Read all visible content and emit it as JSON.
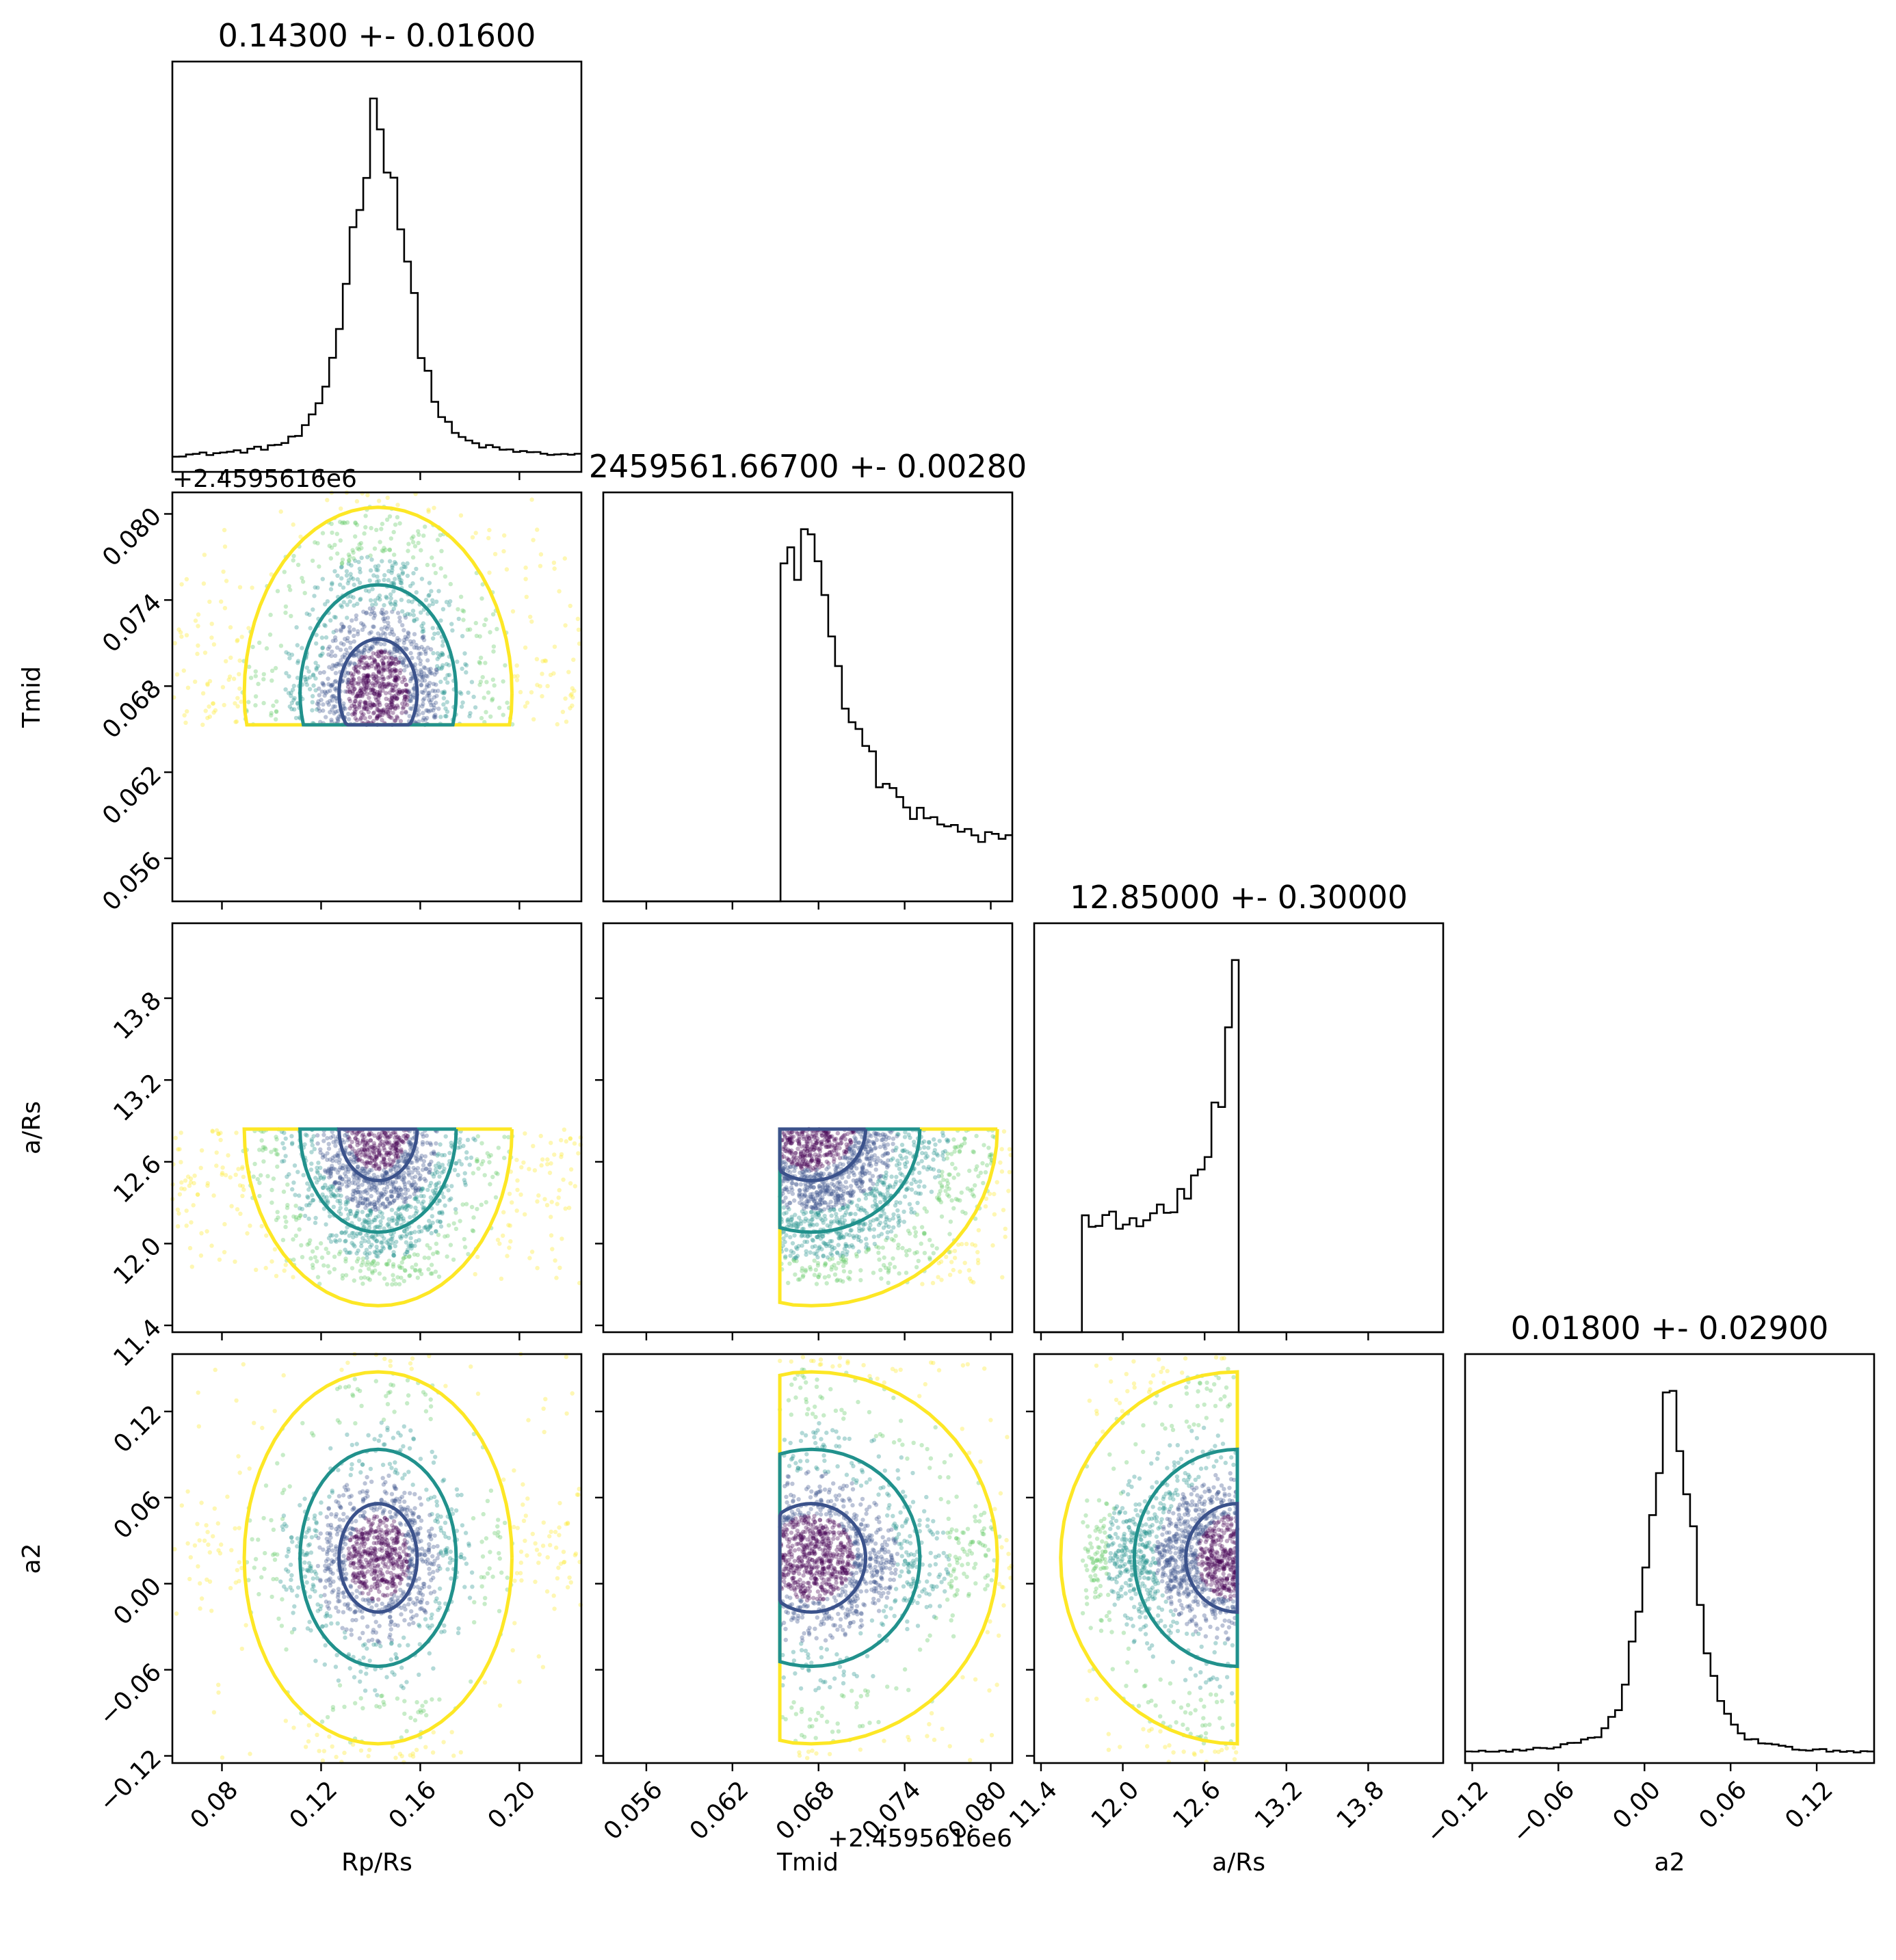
{
  "chart_data": {
    "type": "scatter",
    "subtype": "corner-plot",
    "params": [
      {
        "id": "rp",
        "title": "0.14300 +- 0.01600",
        "label": "Rp/Rs",
        "range": [
          0.06,
          0.225
        ],
        "ticks": [
          0.08,
          0.12,
          0.16,
          0.2
        ],
        "tick_labels": [
          "0.08",
          "0.12",
          "0.16",
          "0.20"
        ]
      },
      {
        "id": "tmid",
        "title": "2459561.66700 +- 0.00280",
        "label": "Tmid",
        "range": [
          0.053,
          0.0815
        ],
        "ticks": [
          0.056,
          0.062,
          0.068,
          0.074,
          0.08
        ],
        "tick_labels": [
          "0.056",
          "0.062",
          "0.068",
          "0.074",
          "0.080"
        ],
        "offset_label": "+2.4595616e6"
      },
      {
        "id": "ars",
        "title": "12.85000 +- 0.30000",
        "label": "a/Rs",
        "range": [
          11.35,
          14.35
        ],
        "ticks": [
          11.4,
          12.0,
          12.6,
          13.2,
          13.8
        ],
        "tick_labels": [
          "11.4",
          "12.0",
          "12.6",
          "13.2",
          "13.8"
        ]
      },
      {
        "id": "a2",
        "title": "0.01800 +- 0.02900",
        "label": "a2",
        "range": [
          -0.125,
          0.16
        ],
        "ticks": [
          -0.12,
          -0.06,
          0.0,
          0.06,
          0.12
        ],
        "tick_labels": [
          "−0.12",
          "−0.06",
          "0.00",
          "0.06",
          "0.12"
        ]
      }
    ],
    "marginals": {
      "rp": {
        "dist": "peak-over-flat",
        "center": 0.143,
        "sigma": 0.011,
        "floor": 0.06,
        "lo": 0.06,
        "hi": 0.225
      },
      "tmid": {
        "dist": "truncated-skewed",
        "cut": 0.0653,
        "peak": 0.0675,
        "lo": 0.053,
        "hi": 0.0815
      },
      "ars": {
        "dist": "rising-truncated",
        "start": 11.7,
        "cut": 12.84,
        "lo": 11.35,
        "hi": 14.35
      },
      "a2": {
        "dist": "peak-over-flat",
        "center": 0.018,
        "sigma": 0.016,
        "floor": 0.04,
        "lo": -0.125,
        "hi": 0.16
      }
    },
    "contour_colors": [
      "#fde725",
      "#21918c",
      "#3b528b"
    ],
    "point_colors": [
      "#440154",
      "#3b528b",
      "#21918c",
      "#5ec962",
      "#fde725"
    ],
    "x_labels": [
      "Rp/Rs",
      "Tmid",
      "a/Rs",
      "a2"
    ],
    "y_labels": [
      "",
      "Tmid",
      "a/Rs",
      "a2"
    ],
    "offset_texts": {
      "x_tmid": "+2.4595616e6",
      "y_tmid": "+2.4595616e6"
    }
  }
}
